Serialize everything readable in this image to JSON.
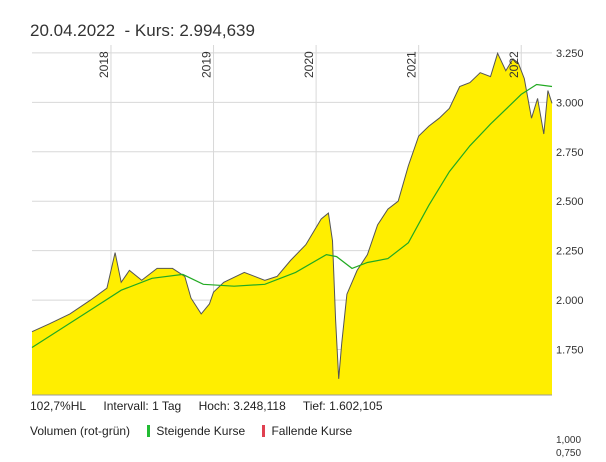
{
  "header": {
    "date": "20.04.2022",
    "course_text": "- Kurs: 2.994,639"
  },
  "stats": {
    "hl": "102,7%HL",
    "interval": "Intervall: 1 Tag",
    "high": "Hoch: 3.248,118",
    "low": "Tief: 1.602,105"
  },
  "legend": {
    "title": "Volumen (rot-grün)",
    "rising": "Steigende Kurse",
    "falling": "Fallende Kurse"
  },
  "volume_ticks": [
    "1,000",
    "0,750"
  ],
  "colors": {
    "area_fill": "#ffee00",
    "price_line": "#555555",
    "moving_average": "#22aa22",
    "rising": "#22bb33",
    "falling": "#e04050",
    "grid": "#d8d8d8"
  },
  "chart_data": {
    "type": "area",
    "ylim": [
      1520,
      3290
    ],
    "y_ticks": [
      {
        "value": 1750,
        "label": "1.750"
      },
      {
        "value": 2000,
        "label": "2.000"
      },
      {
        "value": 2250,
        "label": "2.250"
      },
      {
        "value": 2500,
        "label": "2.500"
      },
      {
        "value": 2750,
        "label": "2.750"
      },
      {
        "value": 3000,
        "label": "3.000"
      },
      {
        "value": 3250,
        "label": "3.250"
      }
    ],
    "xlim": [
      2017.23,
      2022.3
    ],
    "x_ticks": [
      {
        "value": 2018.0,
        "label": "2018"
      },
      {
        "value": 2019.0,
        "label": "2019"
      },
      {
        "value": 2020.0,
        "label": "2020"
      },
      {
        "value": 2021.0,
        "label": "2021"
      },
      {
        "value": 2022.0,
        "label": "2022"
      }
    ],
    "series": [
      {
        "kind": "price",
        "x": [
          2017.23,
          2017.4,
          2017.6,
          2017.8,
          2017.96,
          2018.04,
          2018.1,
          2018.18,
          2018.3,
          2018.45,
          2018.6,
          2018.72,
          2018.78,
          2018.88,
          2018.96,
          2019.0,
          2019.1,
          2019.3,
          2019.5,
          2019.62,
          2019.75,
          2019.9,
          2020.05,
          2020.12,
          2020.16,
          2020.19,
          2020.22,
          2020.25,
          2020.3,
          2020.4,
          2020.5,
          2020.6,
          2020.7,
          2020.8,
          2020.9,
          2021.0,
          2021.1,
          2021.2,
          2021.3,
          2021.4,
          2021.5,
          2021.6,
          2021.7,
          2021.77,
          2021.85,
          2021.92,
          2021.97,
          2022.03,
          2022.1,
          2022.16,
          2022.22,
          2022.26,
          2022.3
        ],
        "values": [
          1840,
          1880,
          1930,
          2000,
          2060,
          2240,
          2090,
          2150,
          2100,
          2160,
          2160,
          2120,
          2010,
          1930,
          1980,
          2040,
          2090,
          2140,
          2100,
          2120,
          2200,
          2280,
          2410,
          2440,
          2300,
          1900,
          1602,
          1780,
          2030,
          2150,
          2230,
          2380,
          2460,
          2500,
          2680,
          2830,
          2880,
          2920,
          2970,
          3080,
          3100,
          3150,
          3130,
          3248,
          3160,
          3220,
          3200,
          3120,
          2920,
          3020,
          2840,
          3060,
          2995
        ]
      },
      {
        "kind": "moving_average",
        "x": [
          2017.23,
          2017.5,
          2017.8,
          2018.1,
          2018.4,
          2018.7,
          2018.9,
          2019.2,
          2019.5,
          2019.8,
          2020.1,
          2020.2,
          2020.35,
          2020.5,
          2020.7,
          2020.9,
          2021.1,
          2021.3,
          2021.5,
          2021.7,
          2021.9,
          2022.0,
          2022.15,
          2022.3
        ],
        "values": [
          1760,
          1850,
          1950,
          2050,
          2110,
          2130,
          2080,
          2070,
          2080,
          2140,
          2230,
          2220,
          2160,
          2190,
          2210,
          2290,
          2480,
          2650,
          2780,
          2890,
          2990,
          3040,
          3090,
          3080
        ]
      }
    ]
  }
}
